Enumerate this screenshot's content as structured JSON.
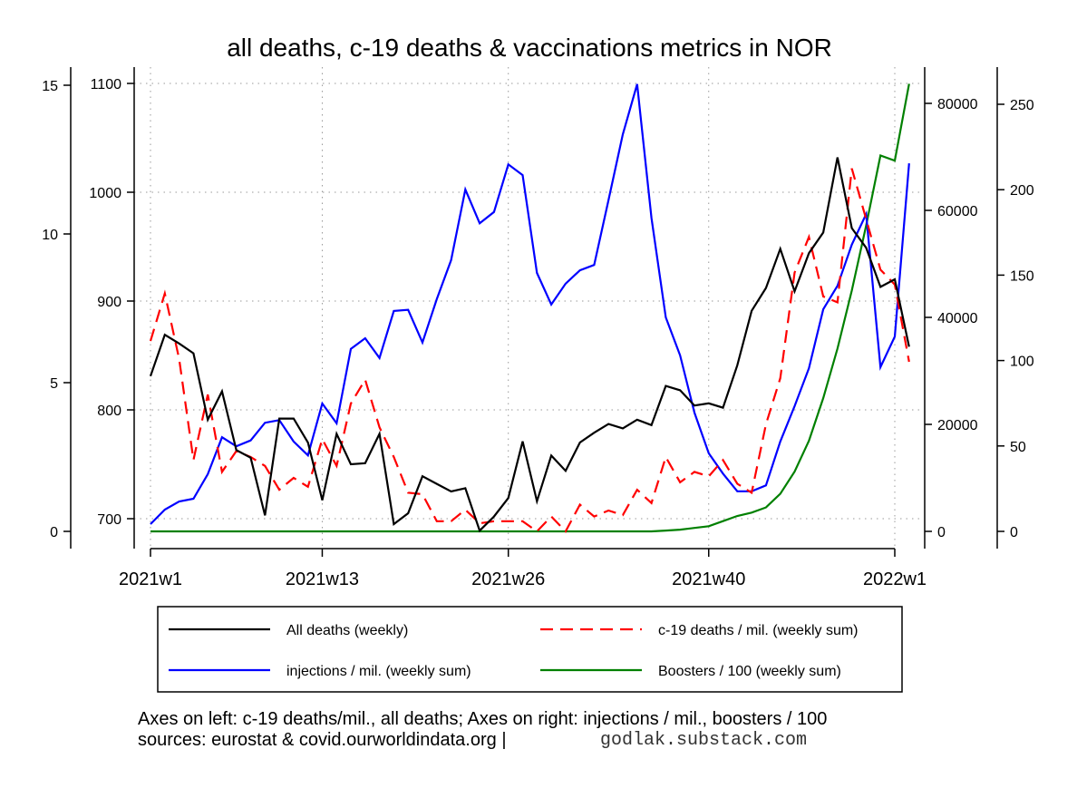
{
  "chart_data": {
    "type": "line",
    "title": "all deaths, c-19 deaths & vaccinations metrics in NOR",
    "x_tick_labels": [
      "2021w1",
      "2021w13",
      "2021w26",
      "2021w40",
      "2022w1"
    ],
    "x_tick_week_index": [
      0,
      12,
      25,
      39,
      52
    ],
    "weeks_count": 54,
    "axes": {
      "left_outer": {
        "label": "c-19 deaths/mil.",
        "range": [
          0,
          15
        ],
        "ticks": [
          0,
          5,
          10,
          15
        ]
      },
      "left_inner": {
        "label": "all deaths",
        "range": [
          700,
          1100
        ],
        "ticks": [
          700,
          800,
          900,
          1000,
          1100
        ]
      },
      "right_inner": {
        "label": "injections / mil.",
        "range": [
          0,
          80000
        ],
        "ticks": [
          0,
          20000,
          40000,
          60000,
          80000
        ]
      },
      "right_outer": {
        "label": "boosters / 100",
        "range": [
          0,
          250
        ],
        "ticks": [
          0,
          50,
          100,
          150,
          200,
          250
        ]
      }
    },
    "grid": true,
    "legend_placement": "bottom",
    "series": [
      {
        "name": "All deaths (weekly)",
        "axis": "left_inner",
        "color": "#000000",
        "dash": false,
        "values": [
          831,
          869,
          861,
          852,
          791,
          817,
          763,
          756,
          703,
          792,
          792,
          770,
          717,
          778,
          750,
          751,
          778,
          695,
          705,
          739,
          732,
          725,
          728,
          689,
          702,
          719,
          771,
          716,
          758,
          744,
          770,
          779,
          787,
          783,
          791,
          786,
          822,
          818,
          804,
          806,
          802,
          841,
          891,
          912,
          948,
          909,
          944,
          963,
          1032,
          967,
          949,
          913,
          920,
          858
        ]
      },
      {
        "name": "c-19 deaths / mil. (weekly sum)",
        "axis": "left_outer",
        "color": "#ff0000",
        "dash": true,
        "values": [
          6.4,
          8.0,
          5.8,
          2.4,
          4.6,
          2.0,
          2.7,
          2.5,
          2.2,
          1.4,
          1.8,
          1.5,
          3.1,
          2.2,
          4.3,
          5.1,
          3.5,
          2.5,
          1.3,
          1.25,
          0.34,
          0.34,
          0.73,
          0.27,
          0.34,
          0.34,
          0.34,
          0,
          0.5,
          0,
          0.9,
          0.5,
          0.7,
          0.55,
          1.4,
          0.95,
          2.5,
          1.65,
          2.0,
          1.85,
          2.4,
          1.6,
          1.3,
          3.6,
          5.15,
          8.7,
          9.9,
          7.9,
          7.7,
          12.2,
          10.5,
          8.8,
          8.3,
          5.7
        ]
      },
      {
        "name": "injections / mil. (weekly sum)",
        "axis": "right_inner",
        "color": "#0000ff",
        "dash": false,
        "values": [
          1360,
          4070,
          5600,
          6100,
          10700,
          17600,
          15900,
          17000,
          20300,
          20800,
          16800,
          14200,
          23900,
          20200,
          34100,
          36100,
          32400,
          41200,
          41400,
          35300,
          43400,
          50700,
          63900,
          57600,
          59700,
          68600,
          66600,
          48300,
          42400,
          46300,
          48800,
          49800,
          61900,
          74200,
          83600,
          58600,
          40000,
          32900,
          22200,
          14600,
          10800,
          7500,
          7500,
          8600,
          16800,
          23400,
          30500,
          41500,
          45900,
          53600,
          59300,
          30700,
          36400,
          68800
        ]
      },
      {
        "name": "Boosters / 100 (weekly sum)",
        "axis": "right_outer",
        "color": "#008000",
        "dash": false,
        "values": [
          0,
          0,
          0,
          0,
          0,
          0,
          0,
          0,
          0,
          0,
          0,
          0,
          0,
          0,
          0,
          0,
          0,
          0,
          0,
          0,
          0,
          0,
          0,
          0,
          0,
          0,
          0,
          0,
          0,
          0,
          0,
          0,
          0,
          0,
          0,
          0,
          0.5,
          1,
          2,
          3,
          6,
          9,
          11,
          14,
          22,
          35,
          53,
          78,
          107,
          141,
          179,
          220,
          217,
          262
        ]
      }
    ],
    "footer": {
      "line1": "Axes on left: c-19 deaths/mil., all deaths; Axes on right: injections / mil., boosters / 100",
      "line2": "sources: eurostat & covid.ourworldindata.org |",
      "credit": "godlak.substack.com"
    }
  }
}
